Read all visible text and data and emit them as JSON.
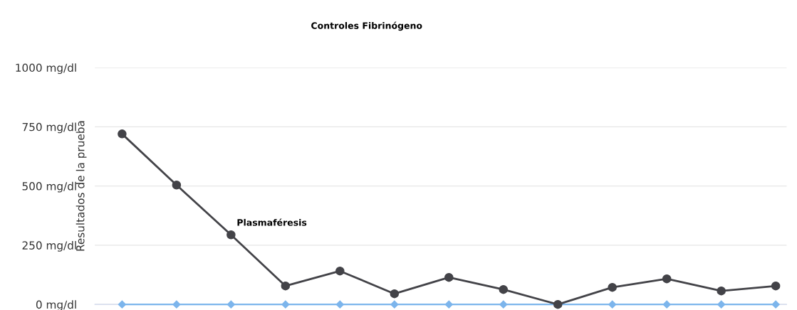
{
  "chart_data": {
    "type": "line",
    "title": "Controles Fibrinógeno",
    "ylabel": "Resultados de la prueba",
    "categories": [
      null,
      null,
      null,
      null,
      null,
      null,
      null,
      null,
      null,
      null,
      null,
      null,
      null
    ],
    "series": [
      {
        "color": "#434348",
        "marker": "circle",
        "values": [
          720,
          504,
          294,
          78,
          141,
          45,
          114,
          63,
          0,
          72,
          108,
          57,
          78
        ]
      },
      {
        "color": "#7cb5ec",
        "marker": "diamond",
        "values": [
          0,
          0,
          0,
          0,
          0,
          0,
          0,
          0,
          0,
          0,
          0,
          0,
          0
        ]
      }
    ],
    "ylim": [
      0,
      1000
    ],
    "yticks": [
      {
        "value": 0,
        "label": "0 mg/dl"
      },
      {
        "value": 250,
        "label": "250 mg/dl"
      },
      {
        "value": 500,
        "label": "500 mg/dl"
      },
      {
        "value": 750,
        "label": "750 mg/dl"
      },
      {
        "value": 1000,
        "label": "1000 mg/dl"
      }
    ],
    "grid": "y",
    "legend": false,
    "annotations": [
      "Plasmaféresis"
    ]
  }
}
